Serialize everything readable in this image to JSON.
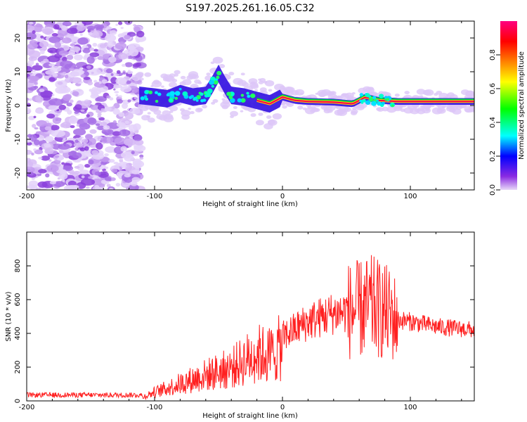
{
  "title": "S197.2025.261.16.05.C32",
  "chart_data": [
    {
      "type": "heatmap",
      "name": "spectrogram",
      "xlabel": "Height of straight line (km)",
      "ylabel": "Frequency (Hz)",
      "xlim": [
        -200,
        150
      ],
      "ylim": [
        -25,
        25
      ],
      "xticks": [
        -200,
        -100,
        0,
        100
      ],
      "yticks": [
        -20,
        -10,
        0,
        10,
        20
      ],
      "ridge": [
        [
          -112,
          3.0
        ],
        [
          -100,
          2.5
        ],
        [
          -90,
          2.0
        ],
        [
          -80,
          3.5
        ],
        [
          -70,
          2.5
        ],
        [
          -60,
          3.0
        ],
        [
          -55,
          6.0
        ],
        [
          -50,
          9.5
        ],
        [
          -45,
          6.0
        ],
        [
          -40,
          3.0
        ],
        [
          -30,
          2.5
        ],
        [
          -20,
          1.5
        ],
        [
          -10,
          0.5
        ],
        [
          0,
          2.5
        ],
        [
          10,
          1.5
        ],
        [
          20,
          1.2
        ],
        [
          40,
          1.0
        ],
        [
          55,
          0.5
        ],
        [
          65,
          2.5
        ],
        [
          75,
          1.5
        ],
        [
          90,
          1.2
        ],
        [
          120,
          1.2
        ],
        [
          150,
          1.2
        ]
      ],
      "colorbar": {
        "label": "Normalized spectral amplitude",
        "range": [
          0,
          1
        ],
        "ticks": [
          "0.0",
          "0.2",
          "0.4",
          "0.6",
          "0.8"
        ],
        "colors": [
          "#e8d8f8",
          "#8a2be2",
          "#0000ff",
          "#00ffff",
          "#00ff00",
          "#ffff00",
          "#ff8000",
          "#ff0000",
          "#ff0080"
        ]
      }
    },
    {
      "type": "line",
      "name": "snr",
      "xlabel": "Height of straight line (km)",
      "ylabel": "SNR (10 * v/v)",
      "xlim": [
        -200,
        150
      ],
      "ylim": [
        0,
        1000
      ],
      "xticks": [
        -200,
        -100,
        0,
        100
      ],
      "yticks": [
        0,
        200,
        400,
        600,
        800
      ],
      "color": "#ff2020",
      "envelope": [
        [
          -200,
          25
        ],
        [
          -110,
          25
        ],
        [
          -100,
          60
        ],
        [
          -80,
          120
        ],
        [
          -60,
          180
        ],
        [
          -40,
          230
        ],
        [
          -20,
          330
        ],
        [
          -10,
          320
        ],
        [
          0,
          380
        ],
        [
          20,
          470
        ],
        [
          40,
          520
        ],
        [
          60,
          540
        ],
        [
          70,
          560
        ],
        [
          80,
          530
        ],
        [
          90,
          480
        ],
        [
          100,
          470
        ],
        [
          120,
          440
        ],
        [
          150,
          420
        ]
      ]
    }
  ]
}
